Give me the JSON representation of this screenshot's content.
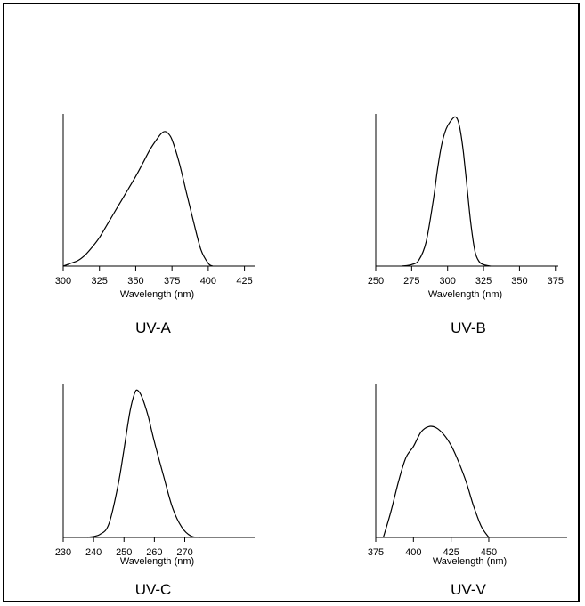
{
  "chart_data": [
    {
      "type": "line",
      "title": "UV-A",
      "xlabel": "Wavelength (nm)",
      "ylabel": "",
      "xlim": [
        300,
        432
      ],
      "ylim": [
        0,
        1.12
      ],
      "xticks": [
        300,
        325,
        350,
        375,
        400,
        425
      ],
      "tick_labels": [
        "300",
        "325",
        "350",
        "375",
        "400",
        "425"
      ],
      "grid": false,
      "x": [
        300,
        305,
        310,
        315,
        320,
        325,
        330,
        335,
        340,
        345,
        350,
        355,
        360,
        365,
        368,
        370,
        372,
        375,
        380,
        385,
        390,
        395,
        400,
        403
      ],
      "y": [
        0.0,
        0.02,
        0.04,
        0.08,
        0.14,
        0.21,
        0.3,
        0.39,
        0.48,
        0.57,
        0.66,
        0.76,
        0.86,
        0.94,
        0.98,
        0.99,
        0.98,
        0.93,
        0.76,
        0.54,
        0.32,
        0.12,
        0.02,
        0.0
      ]
    },
    {
      "type": "line",
      "title": "UV-B",
      "xlabel": "Wavelength (nm)",
      "ylabel": "",
      "xlim": [
        250,
        377
      ],
      "ylim": [
        0,
        1.02
      ],
      "xticks": [
        250,
        275,
        300,
        325,
        350,
        375
      ],
      "tick_labels": [
        "250",
        "275",
        "300",
        "325",
        "350",
        "375"
      ],
      "grid": false,
      "x": [
        268,
        275,
        280,
        285,
        290,
        293,
        296,
        299,
        302,
        305,
        307,
        309,
        311,
        313,
        316,
        319,
        322,
        325,
        330
      ],
      "y": [
        0.0,
        0.01,
        0.04,
        0.16,
        0.44,
        0.65,
        0.82,
        0.92,
        0.97,
        1.0,
        0.98,
        0.9,
        0.76,
        0.58,
        0.3,
        0.1,
        0.03,
        0.01,
        0.0
      ]
    },
    {
      "type": "line",
      "title": "UV-C",
      "xlabel": "Wavelength (nm)",
      "ylabel": "",
      "xlim": [
        230,
        293
      ],
      "ylim": [
        0,
        1.04
      ],
      "xticks": [
        230,
        240,
        250,
        260,
        270
      ],
      "tick_labels": [
        "230",
        "240",
        "250",
        "260",
        "270"
      ],
      "grid": false,
      "x": [
        238,
        242,
        245,
        248,
        250,
        252,
        253.5,
        254.5,
        256,
        258,
        260,
        263,
        266,
        269,
        272,
        275
      ],
      "y": [
        0.0,
        0.02,
        0.09,
        0.35,
        0.6,
        0.86,
        0.98,
        1.0,
        0.95,
        0.82,
        0.65,
        0.42,
        0.2,
        0.07,
        0.01,
        0.0
      ]
    },
    {
      "type": "line",
      "title": "UV-V",
      "xlabel": "Wavelength (nm)",
      "ylabel": "",
      "xlim": [
        375,
        502
      ],
      "ylim": [
        0,
        1.38
      ],
      "xticks": [
        375,
        400,
        425,
        450
      ],
      "tick_labels": [
        "375",
        "400",
        "425",
        "450"
      ],
      "grid": false,
      "x": [
        380,
        385,
        390,
        395,
        400,
        405,
        410,
        415,
        420,
        425,
        430,
        435,
        440,
        445,
        450
      ],
      "y": [
        0.0,
        0.23,
        0.5,
        0.72,
        0.82,
        0.95,
        1.0,
        0.99,
        0.93,
        0.83,
        0.68,
        0.5,
        0.28,
        0.1,
        0.0
      ]
    }
  ]
}
